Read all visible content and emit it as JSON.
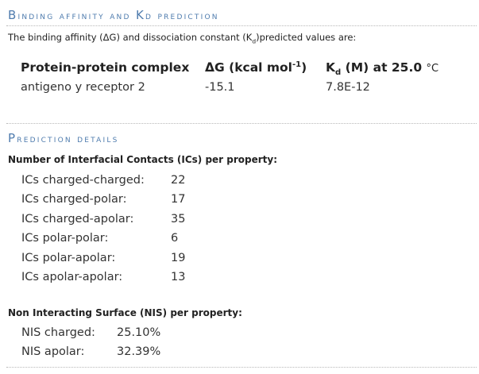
{
  "affinity_section": {
    "title_part1_cap": "B",
    "title_part1_rest": "inding affinity and ",
    "title_part2_cap": "K",
    "title_part2_sub": "D",
    "title_part3": " prediction",
    "intro_a": "The binding affinity (ΔG) and dissociation constant (K",
    "intro_sub": "d",
    "intro_b": ")predicted values are:",
    "headers": {
      "complex": "Protein-protein complex",
      "dg_a": "ΔG (kcal mol",
      "dg_sup": "-1",
      "dg_b": ")",
      "kd_k": "K",
      "kd_sub": "d",
      "kd_b": " (M) at 25.0 ",
      "kd_unit": "°C"
    },
    "row": {
      "complex": "antigeno y receptor 2",
      "dg": "-15.1",
      "kd": "7.8E-12"
    }
  },
  "details_section": {
    "title_cap": "P",
    "title_rest": "rediction details",
    "ics_heading": "Number of Interfacial Contacts (ICs) per property:",
    "ics": [
      {
        "label": "ICs charged-charged:",
        "value": "22"
      },
      {
        "label": "ICs charged-polar:",
        "value": "17"
      },
      {
        "label": "ICs charged-apolar:",
        "value": "35"
      },
      {
        "label": "ICs polar-polar:",
        "value": "6"
      },
      {
        "label": "ICs polar-apolar:",
        "value": "19"
      },
      {
        "label": "ICs apolar-apolar:",
        "value": "13"
      }
    ],
    "nis_heading": "Non Interacting Surface (NIS) per property:",
    "nis": [
      {
        "label": "NIS charged:",
        "value": "25.10%"
      },
      {
        "label": "NIS apolar:",
        "value": "32.39%"
      }
    ]
  }
}
